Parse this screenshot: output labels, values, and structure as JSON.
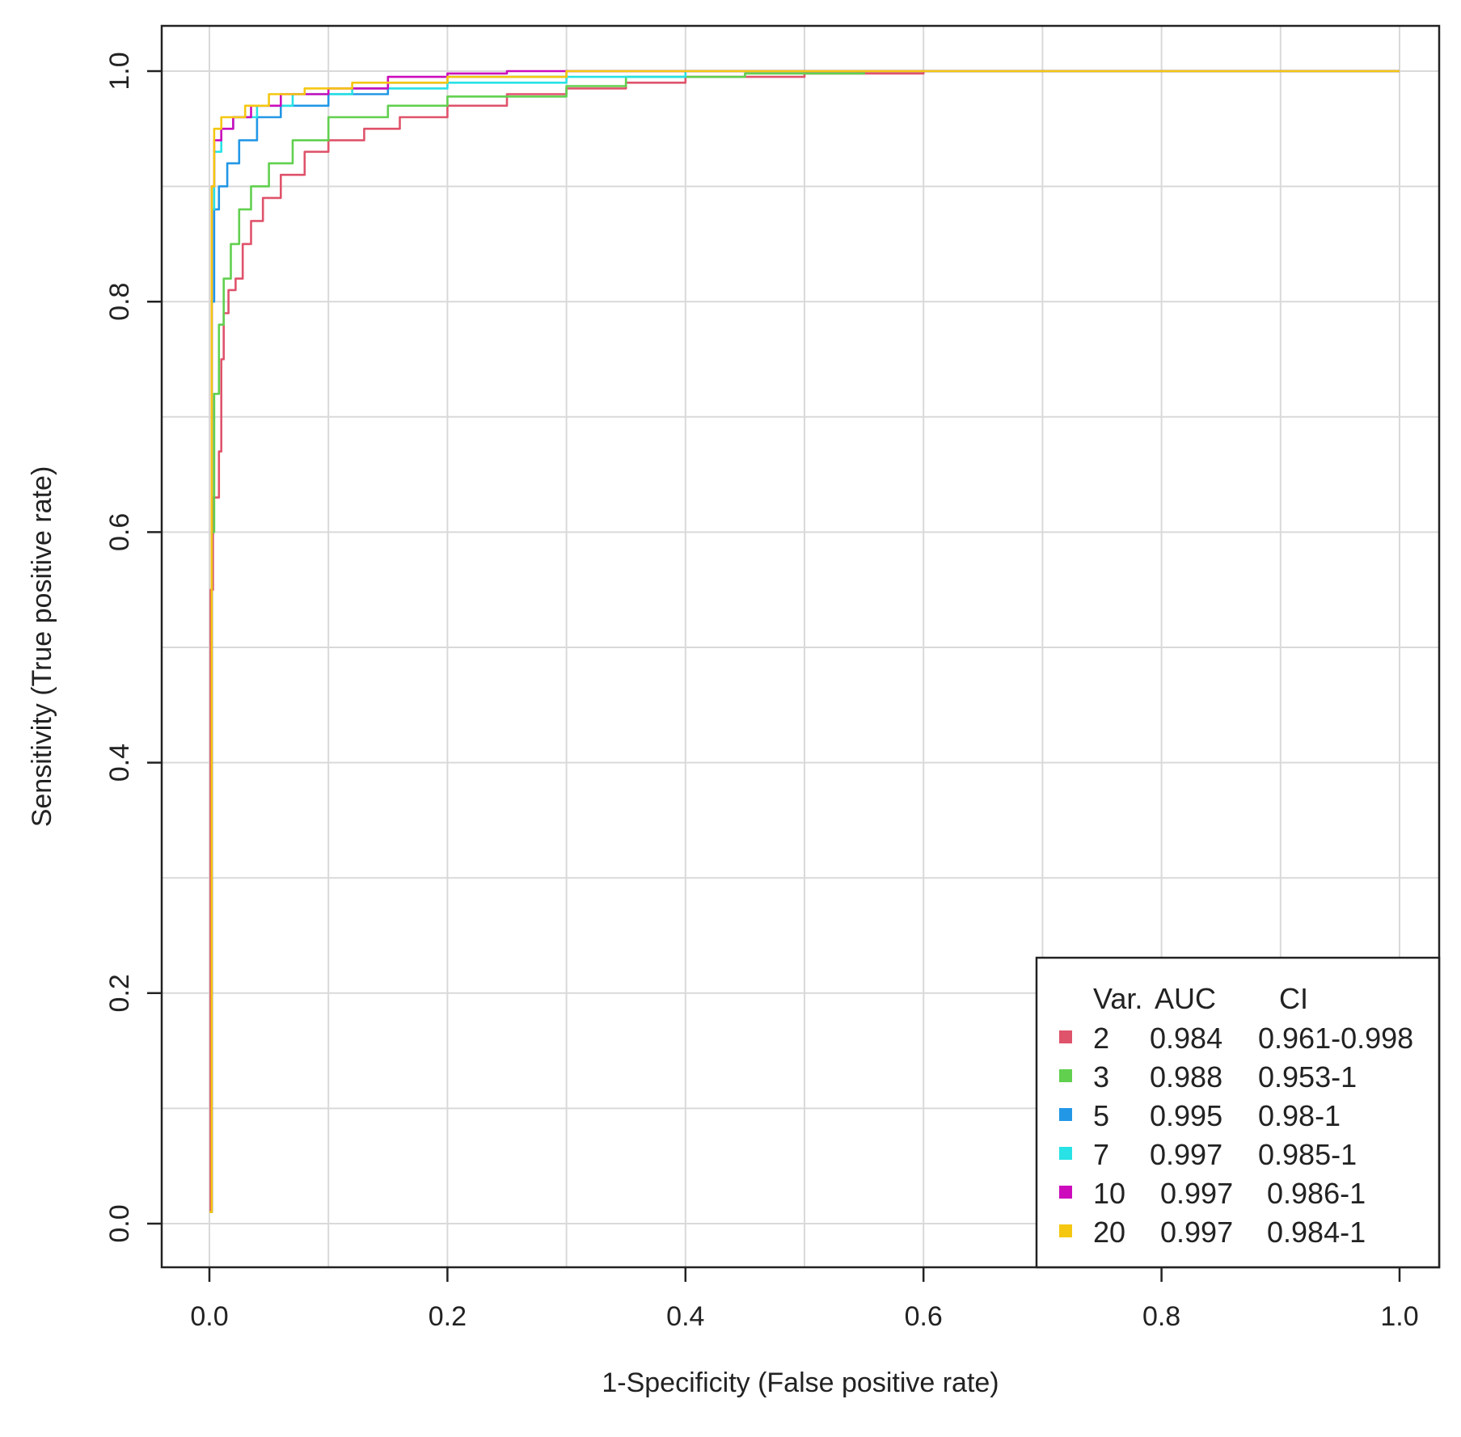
{
  "chart_data": {
    "type": "line",
    "title": "",
    "xlabel": "1-Specificity (False positive rate)",
    "ylabel": "Sensitivity (True positive rate)",
    "xlim": [
      0,
      1
    ],
    "ylim": [
      0,
      1
    ],
    "x_ticks": [
      "0.0",
      "0.2",
      "0.4",
      "0.6",
      "0.8",
      "1.0"
    ],
    "y_ticks": [
      "0.0",
      "0.2",
      "0.4",
      "0.6",
      "0.8",
      "1.0"
    ],
    "grid": true,
    "legend": {
      "position": "bottom-right",
      "header": {
        "var": "Var.",
        "auc": "AUC",
        "ci": "CI"
      }
    },
    "series": [
      {
        "name": "2",
        "auc": "0.984",
        "ci": "0.961-0.998",
        "color": "#DF536B",
        "points": [
          [
            0,
            0.01
          ],
          [
            0.001,
            0.55
          ],
          [
            0.003,
            0.63
          ],
          [
            0.008,
            0.67
          ],
          [
            0.01,
            0.75
          ],
          [
            0.012,
            0.79
          ],
          [
            0.016,
            0.81
          ],
          [
            0.022,
            0.82
          ],
          [
            0.028,
            0.85
          ],
          [
            0.035,
            0.87
          ],
          [
            0.045,
            0.89
          ],
          [
            0.06,
            0.91
          ],
          [
            0.08,
            0.93
          ],
          [
            0.1,
            0.94
          ],
          [
            0.13,
            0.95
          ],
          [
            0.16,
            0.96
          ],
          [
            0.2,
            0.97
          ],
          [
            0.25,
            0.98
          ],
          [
            0.3,
            0.985
          ],
          [
            0.35,
            0.99
          ],
          [
            0.4,
            0.995
          ],
          [
            0.5,
            0.998
          ],
          [
            0.6,
            1.0
          ],
          [
            1.0,
            1.0
          ]
        ]
      },
      {
        "name": "3",
        "auc": "0.988",
        "ci": "0.953-1",
        "color": "#61D04F",
        "points": [
          [
            0,
            0.01
          ],
          [
            0.002,
            0.6
          ],
          [
            0.004,
            0.72
          ],
          [
            0.008,
            0.78
          ],
          [
            0.012,
            0.82
          ],
          [
            0.018,
            0.85
          ],
          [
            0.025,
            0.88
          ],
          [
            0.035,
            0.9
          ],
          [
            0.05,
            0.92
          ],
          [
            0.07,
            0.94
          ],
          [
            0.1,
            0.96
          ],
          [
            0.15,
            0.97
          ],
          [
            0.2,
            0.978
          ],
          [
            0.3,
            0.987
          ],
          [
            0.35,
            0.995
          ],
          [
            0.45,
            0.998
          ],
          [
            0.55,
            1.0
          ],
          [
            1.0,
            1.0
          ]
        ]
      },
      {
        "name": "5",
        "auc": "0.995",
        "ci": "0.98-1",
        "color": "#2297E6",
        "points": [
          [
            0,
            0.01
          ],
          [
            0.002,
            0.8
          ],
          [
            0.004,
            0.88
          ],
          [
            0.008,
            0.9
          ],
          [
            0.015,
            0.92
          ],
          [
            0.025,
            0.94
          ],
          [
            0.04,
            0.96
          ],
          [
            0.06,
            0.97
          ],
          [
            0.1,
            0.98
          ],
          [
            0.15,
            0.99
          ],
          [
            0.2,
            0.995
          ],
          [
            0.3,
            1.0
          ],
          [
            1.0,
            1.0
          ]
        ]
      },
      {
        "name": "7",
        "auc": "0.997",
        "ci": "0.985-1",
        "color": "#28E2E5",
        "points": [
          [
            0,
            0.01
          ],
          [
            0.002,
            0.88
          ],
          [
            0.004,
            0.93
          ],
          [
            0.01,
            0.95
          ],
          [
            0.02,
            0.96
          ],
          [
            0.04,
            0.97
          ],
          [
            0.07,
            0.98
          ],
          [
            0.12,
            0.985
          ],
          [
            0.2,
            0.99
          ],
          [
            0.3,
            0.995
          ],
          [
            0.4,
            1.0
          ],
          [
            1.0,
            1.0
          ]
        ]
      },
      {
        "name": "10",
        "auc": "0.997",
        "ci": "0.986-1",
        "color": "#CD0BBC",
        "points": [
          [
            0,
            0.01
          ],
          [
            0.002,
            0.9
          ],
          [
            0.004,
            0.94
          ],
          [
            0.01,
            0.95
          ],
          [
            0.02,
            0.96
          ],
          [
            0.035,
            0.97
          ],
          [
            0.06,
            0.98
          ],
          [
            0.1,
            0.985
          ],
          [
            0.15,
            0.995
          ],
          [
            0.2,
            0.998
          ],
          [
            0.25,
            1.0
          ],
          [
            1.0,
            1.0
          ]
        ]
      },
      {
        "name": "20",
        "auc": "0.997",
        "ci": "0.984-1",
        "color": "#F5C710",
        "points": [
          [
            0,
            0.01
          ],
          [
            0.002,
            0.9
          ],
          [
            0.004,
            0.95
          ],
          [
            0.01,
            0.96
          ],
          [
            0.03,
            0.97
          ],
          [
            0.05,
            0.98
          ],
          [
            0.08,
            0.985
          ],
          [
            0.12,
            0.99
          ],
          [
            0.2,
            0.995
          ],
          [
            0.3,
            1.0
          ],
          [
            1.0,
            1.0
          ]
        ]
      }
    ]
  }
}
